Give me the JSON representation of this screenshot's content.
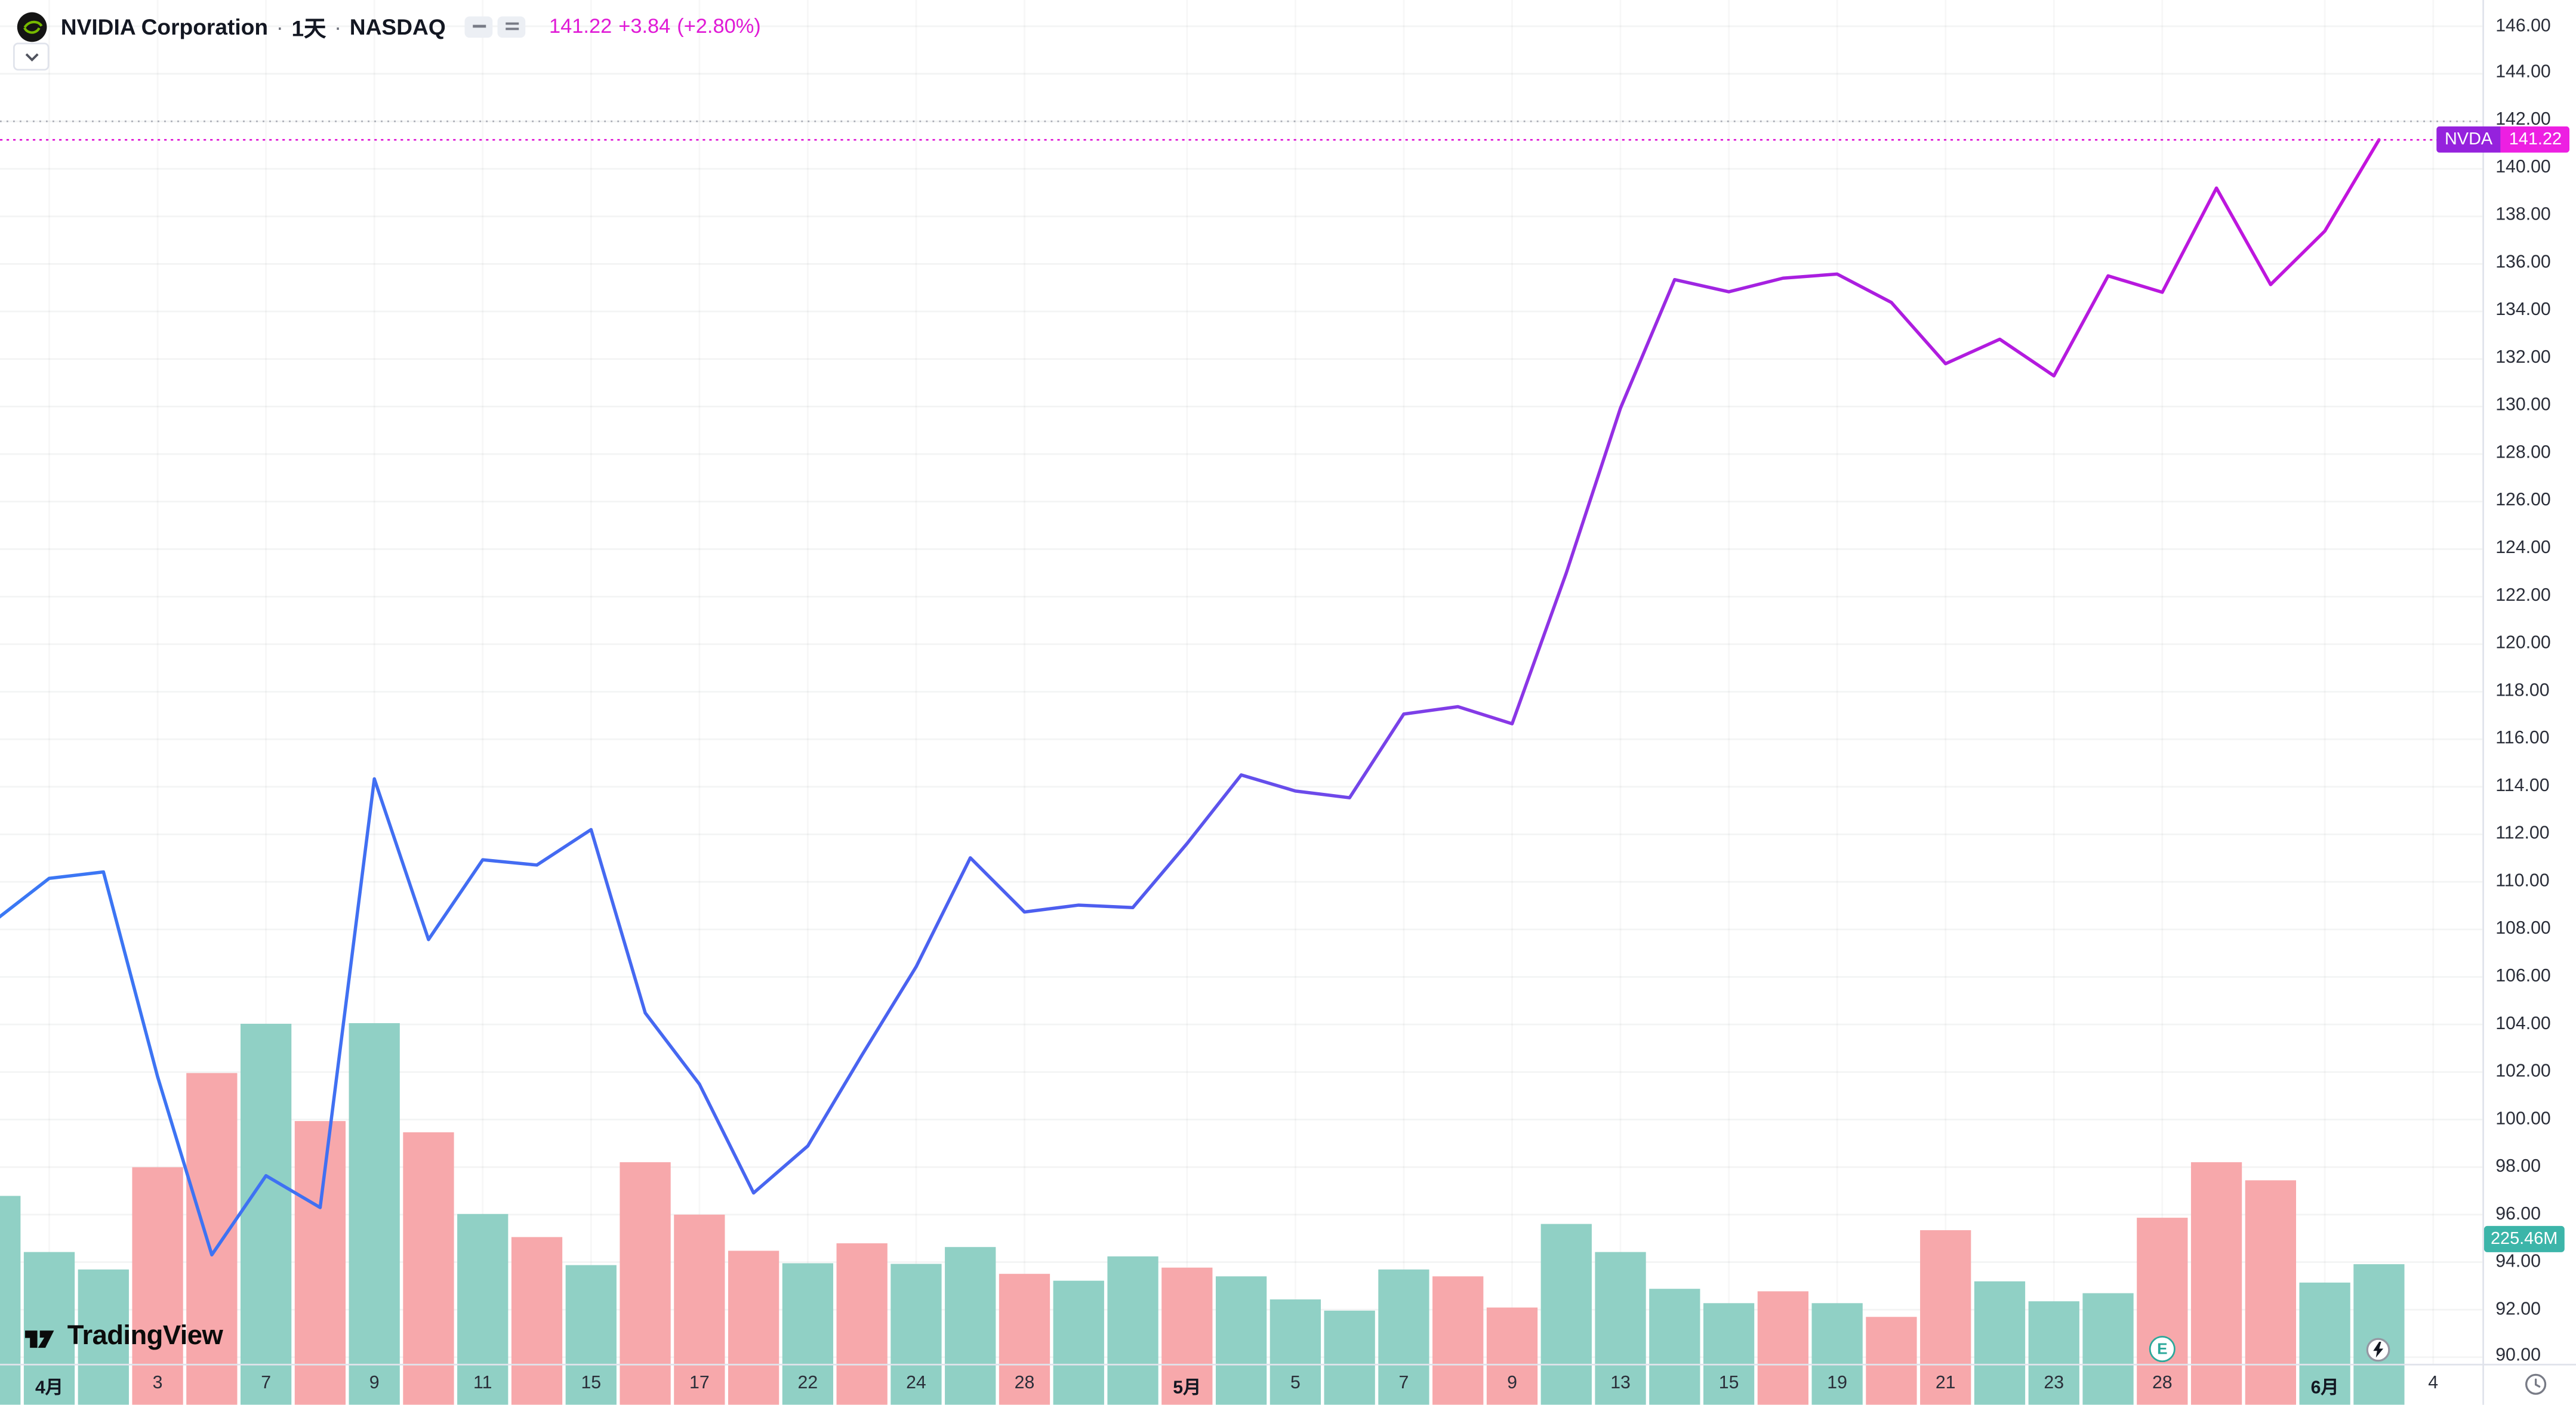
{
  "header": {
    "symbol_title": "NVIDIA Corporation",
    "separator": "·",
    "interval": "1天",
    "exchange": "NASDAQ",
    "last_price": "141.22",
    "change": "+3.84",
    "change_pct": "(+2.80%)"
  },
  "badges": {
    "symbol": "NVDA",
    "price": "141.22",
    "volume": "225.46M"
  },
  "watermark": {
    "text": "TradingView"
  },
  "markers": {
    "earnings_label": "E",
    "earnings_index": 40,
    "flash_index": 44
  },
  "colors": {
    "price_text": "#e01ad6",
    "price_line": "#e01ad6",
    "badge_symbol_bg": "#9522dd",
    "badge_value_bg": "#ed1fe2",
    "volume_badge_bg": "#3cb5a9",
    "nvidia_green": "#76b900"
  },
  "price_axis": {
    "ticks": [
      "146.00",
      "144.00",
      "142.00",
      "140.00",
      "138.00",
      "136.00",
      "134.00",
      "132.00",
      "130.00",
      "128.00",
      "126.00",
      "124.00",
      "122.00",
      "120.00",
      "118.00",
      "116.00",
      "114.00",
      "112.00",
      "110.00",
      "108.00",
      "106.00",
      "104.00",
      "102.00",
      "100.00",
      "98.00",
      "96.00",
      "94.00",
      "92.00",
      "90.00"
    ]
  },
  "time_axis": {
    "labels": [
      {
        "i": 1,
        "t": "4月",
        "strong": true
      },
      {
        "i": 3,
        "t": "3"
      },
      {
        "i": 5,
        "t": "7"
      },
      {
        "i": 7,
        "t": "9"
      },
      {
        "i": 9,
        "t": "11"
      },
      {
        "i": 11,
        "t": "15"
      },
      {
        "i": 13,
        "t": "17"
      },
      {
        "i": 15,
        "t": "22"
      },
      {
        "i": 17,
        "t": "24"
      },
      {
        "i": 19,
        "t": "28"
      },
      {
        "i": 22,
        "t": "5月",
        "strong": true
      },
      {
        "i": 24,
        "t": "5"
      },
      {
        "i": 26,
        "t": "7"
      },
      {
        "i": 28,
        "t": "9"
      },
      {
        "i": 30,
        "t": "13"
      },
      {
        "i": 32,
        "t": "15"
      },
      {
        "i": 34,
        "t": "19"
      },
      {
        "i": 36,
        "t": "21"
      },
      {
        "i": 38,
        "t": "23"
      },
      {
        "i": 40,
        "t": "28"
      },
      {
        "i": 43,
        "t": "6月",
        "strong": true
      },
      {
        "i": 45,
        "t": "4"
      }
    ]
  },
  "chart_data": {
    "type": "line",
    "title": "NVIDIA Corporation · 1天 · NASDAQ",
    "xlabel": "",
    "ylabel": "",
    "ylim": [
      90,
      146
    ],
    "ytick_step": 2,
    "grid": "faint",
    "legend_position": "top-left",
    "last_price": 141.22,
    "reference_line": 142.0,
    "x": [
      "3/31",
      "4/1",
      "4/2",
      "4/3",
      "4/4",
      "4/7",
      "4/8",
      "4/9",
      "4/10",
      "4/11",
      "4/14",
      "4/15",
      "4/16",
      "4/17",
      "4/21",
      "4/22",
      "4/23",
      "4/24",
      "4/25",
      "4/28",
      "4/29",
      "4/30",
      "5/1",
      "5/2",
      "5/5",
      "5/6",
      "5/7",
      "5/8",
      "5/9",
      "5/12",
      "5/13",
      "5/14",
      "5/15",
      "5/16",
      "5/19",
      "5/20",
      "5/21",
      "5/22",
      "5/23",
      "5/27",
      "5/28",
      "5/29",
      "5/30",
      "6/2",
      "6/3"
    ],
    "close": [
      108.38,
      110.15,
      110.42,
      101.8,
      94.31,
      97.64,
      96.3,
      114.33,
      107.57,
      110.93,
      110.71,
      112.2,
      104.49,
      101.49,
      96.91,
      98.89,
      102.71,
      106.43,
      111.01,
      108.73,
      109.02,
      108.92,
      111.61,
      114.5,
      113.82,
      113.54,
      117.06,
      117.37,
      116.65,
      123.0,
      129.93,
      135.34,
      134.83,
      135.4,
      135.57,
      134.38,
      131.8,
      132.83,
      131.29,
      135.5,
      134.81,
      139.19,
      135.13,
      137.38,
      141.22
    ],
    "volume_m": [
      335,
      245,
      217,
      381,
      532,
      611,
      455,
      612,
      437,
      306,
      269,
      224,
      389,
      305,
      247,
      227,
      259,
      226,
      253,
      210,
      199,
      238,
      220,
      206,
      169,
      151,
      217,
      206,
      156,
      290,
      245,
      186,
      163,
      182,
      163,
      141,
      280,
      198,
      166,
      179,
      300,
      389,
      360,
      196,
      225.46
    ],
    "volume_dir": [
      "u",
      "u",
      "u",
      "d",
      "d",
      "u",
      "d",
      "u",
      "d",
      "u",
      "d",
      "u",
      "d",
      "d",
      "d",
      "u",
      "d",
      "u",
      "u",
      "d",
      "u",
      "u",
      "d",
      "u",
      "u",
      "u",
      "u",
      "d",
      "d",
      "u",
      "u",
      "u",
      "u",
      "d",
      "u",
      "d",
      "d",
      "u",
      "u",
      "u",
      "d",
      "d",
      "d",
      "u",
      "u"
    ],
    "up_color": "#90d0c5",
    "down_color": "#f7a8ab",
    "line_gradient": [
      {
        "offset": 0,
        "color": "#3a78f4"
      },
      {
        "offset": 0.47,
        "color": "#4e5def"
      },
      {
        "offset": 0.63,
        "color": "#8838e6"
      },
      {
        "offset": 0.75,
        "color": "#a81fe0"
      },
      {
        "offset": 1,
        "color": "#c414dd"
      }
    ]
  }
}
